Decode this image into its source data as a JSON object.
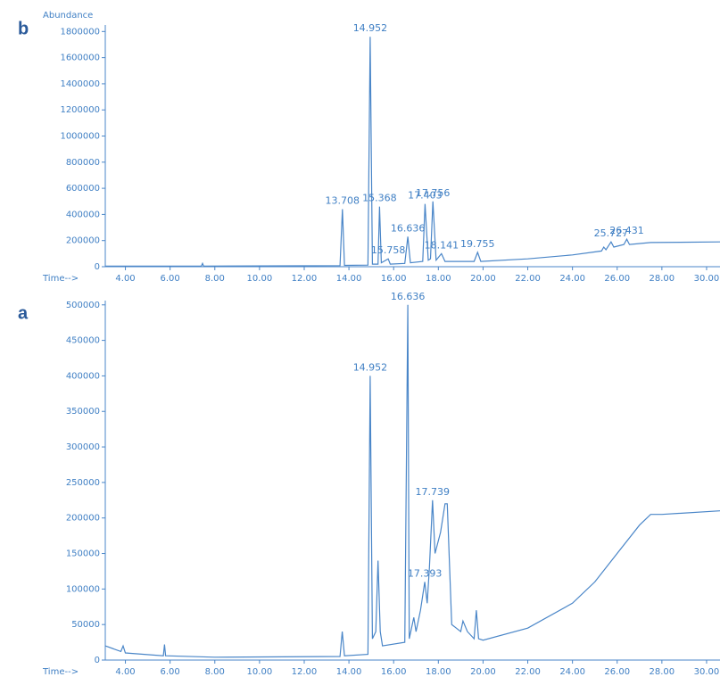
{
  "chart_data": [
    {
      "type": "line",
      "panel": "b",
      "ylabel": "Abundance",
      "xlabel": "Time-->",
      "xlim": [
        3.1,
        30.6
      ],
      "ylim": [
        0,
        1850000
      ],
      "color": "#4a86c8",
      "xticks": [
        {
          "value": 4,
          "label": "4.00"
        },
        {
          "value": 6,
          "label": "6.00"
        },
        {
          "value": 8,
          "label": "8.00"
        },
        {
          "value": 10,
          "label": "10.00"
        },
        {
          "value": 12,
          "label": "12.00"
        },
        {
          "value": 14,
          "label": "14.00"
        },
        {
          "value": 16,
          "label": "16.00"
        },
        {
          "value": 18,
          "label": "18.00"
        },
        {
          "value": 20,
          "label": "20.00"
        },
        {
          "value": 22,
          "label": "22.00"
        },
        {
          "value": 24,
          "label": "24.00"
        },
        {
          "value": 26,
          "label": "26.00"
        },
        {
          "value": 28,
          "label": "28.00"
        },
        {
          "value": 30,
          "label": "30.00"
        }
      ],
      "yticks": [
        0,
        200000,
        400000,
        600000,
        800000,
        1000000,
        1200000,
        1400000,
        1600000,
        1800000
      ],
      "series": [
        {
          "x": [
            3.1,
            7.4,
            7.45,
            7.5,
            13.6,
            13.708,
            13.8,
            14.85,
            14.952,
            15.05,
            15.3,
            15.368,
            15.45,
            15.758,
            15.85,
            16.5,
            16.636,
            16.75,
            17.3,
            17.403,
            17.55,
            17.65,
            17.756,
            17.9,
            18.141,
            18.3,
            19.6,
            19.755,
            19.9,
            22,
            24,
            25.3,
            25.4,
            25.5,
            25.727,
            25.85,
            26.3,
            26.431,
            26.55,
            27.5,
            30.6
          ],
          "values": [
            5000,
            5000,
            25000,
            5000,
            8000,
            440000,
            10000,
            12000,
            1760000,
            20000,
            20000,
            460000,
            30000,
            60000,
            20000,
            25000,
            230000,
            30000,
            40000,
            480000,
            50000,
            60000,
            500000,
            50000,
            100000,
            40000,
            40000,
            110000,
            40000,
            60000,
            90000,
            120000,
            150000,
            130000,
            190000,
            150000,
            170000,
            210000,
            170000,
            185000,
            190000
          ]
        }
      ],
      "peaks": [
        {
          "text": "14.952",
          "x": 14.952,
          "y": 1760000
        },
        {
          "text": "13.708",
          "x": 13.708,
          "y": 440000
        },
        {
          "text": "15.368",
          "x": 15.368,
          "y": 460000
        },
        {
          "text": "15.758",
          "x": 15.758,
          "y": 60000
        },
        {
          "text": "16.636",
          "x": 16.636,
          "y": 230000
        },
        {
          "text": "17.403",
          "x": 17.403,
          "y": 480000
        },
        {
          "text": "17.756",
          "x": 17.756,
          "y": 500000
        },
        {
          "text": "18.141",
          "x": 18.141,
          "y": 100000
        },
        {
          "text": "19.755",
          "x": 19.755,
          "y": 110000
        },
        {
          "text": "25.727",
          "x": 25.727,
          "y": 190000
        },
        {
          "text": "26.431",
          "x": 26.431,
          "y": 210000
        }
      ]
    },
    {
      "type": "line",
      "panel": "a",
      "xlabel": "Time-->",
      "xlim": [
        3.1,
        30.6
      ],
      "ylim": [
        0,
        506000
      ],
      "color": "#4a86c8",
      "xticks": [
        {
          "value": 4,
          "label": "4.00"
        },
        {
          "value": 6,
          "label": "6.00"
        },
        {
          "value": 8,
          "label": "8.00"
        },
        {
          "value": 10,
          "label": "10.00"
        },
        {
          "value": 12,
          "label": "12.00"
        },
        {
          "value": 14,
          "label": "14.00"
        },
        {
          "value": 16,
          "label": "16.00"
        },
        {
          "value": 18,
          "label": "18.00"
        },
        {
          "value": 20,
          "label": "20.00"
        },
        {
          "value": 22,
          "label": "22.00"
        },
        {
          "value": 24,
          "label": "24.00"
        },
        {
          "value": 26,
          "label": "26.00"
        },
        {
          "value": 28,
          "label": "28.00"
        },
        {
          "value": 30,
          "label": "30.00"
        }
      ],
      "yticks": [
        0,
        50000,
        100000,
        150000,
        200000,
        250000,
        300000,
        350000,
        400000,
        450000,
        500000
      ],
      "series": [
        {
          "x": [
            3.1,
            3.8,
            3.9,
            4.0,
            5.7,
            5.75,
            5.8,
            8,
            13.6,
            13.7,
            13.8,
            14.85,
            14.952,
            15.05,
            15.2,
            15.3,
            15.4,
            15.5,
            16.5,
            16.636,
            16.7,
            16.9,
            17.0,
            17.2,
            17.393,
            17.5,
            17.6,
            17.739,
            17.85,
            18.1,
            18.3,
            18.4,
            18.6,
            19.0,
            19.1,
            19.3,
            19.6,
            19.7,
            19.8,
            20,
            22,
            24,
            25,
            26,
            27,
            27.5,
            28,
            30.6
          ],
          "values": [
            20000,
            12000,
            20000,
            10000,
            6000,
            22000,
            6000,
            4000,
            5000,
            40000,
            6000,
            8000,
            400000,
            30000,
            40000,
            140000,
            40000,
            20000,
            25000,
            500000,
            30000,
            60000,
            40000,
            70000,
            110000,
            80000,
            130000,
            225000,
            150000,
            180000,
            220000,
            220000,
            50000,
            40000,
            55000,
            40000,
            30000,
            70000,
            30000,
            28000,
            45000,
            80000,
            110000,
            150000,
            190000,
            205000,
            205000,
            210000
          ]
        }
      ],
      "peaks": [
        {
          "text": "16.636",
          "x": 16.636,
          "y": 500000
        },
        {
          "text": "14.952",
          "x": 14.952,
          "y": 400000
        },
        {
          "text": "17.739",
          "x": 17.739,
          "y": 225000
        },
        {
          "text": "17.393",
          "x": 17.393,
          "y": 110000
        }
      ]
    }
  ]
}
